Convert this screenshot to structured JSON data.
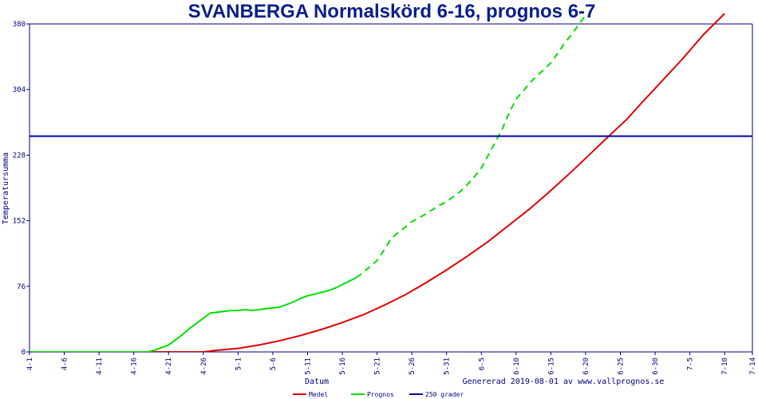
{
  "chart_data": {
    "type": "line",
    "title": "SVANBERGA Normalskörd 6-16, prognos 6-7",
    "xlabel": "Datum",
    "ylabel": "Temperatursumma",
    "ylim": [
      0,
      380
    ],
    "yticks": [
      "0",
      "76",
      "152",
      "228",
      "304",
      "380"
    ],
    "xticks": [
      "4-1",
      "4-6",
      "4-11",
      "4-16",
      "4-21",
      "4-26",
      "5-1",
      "5-6",
      "5-11",
      "5-16",
      "5-21",
      "5-26",
      "5-31",
      "6-5",
      "6-10",
      "6-15",
      "6-20",
      "6-25",
      "6-30",
      "7-5",
      "7-10",
      "7-14"
    ],
    "x_day_offsets": [
      0,
      5,
      10,
      15,
      20,
      25,
      30,
      35,
      40,
      45,
      50,
      55,
      60,
      65,
      70,
      75,
      80,
      85,
      90,
      95,
      100,
      104
    ],
    "x_day_range": [
      0,
      104
    ],
    "footer": "Genererad 2019-08-01 av www.vallprognos.se",
    "grid": false,
    "legend_position": "bottom",
    "series": [
      {
        "name": "Medel",
        "color": "#e00000",
        "style": "solid",
        "points": [
          [
            0,
            0
          ],
          [
            17,
            0
          ],
          [
            20,
            0
          ],
          [
            23,
            0
          ],
          [
            25,
            0
          ],
          [
            27,
            2
          ],
          [
            30,
            4
          ],
          [
            33,
            8
          ],
          [
            36,
            13
          ],
          [
            39,
            19
          ],
          [
            42,
            26
          ],
          [
            45,
            34
          ],
          [
            48,
            43
          ],
          [
            51,
            54
          ],
          [
            54,
            66
          ],
          [
            57,
            80
          ],
          [
            60,
            95
          ],
          [
            63,
            111
          ],
          [
            66,
            128
          ],
          [
            69,
            147
          ],
          [
            72,
            166
          ],
          [
            75,
            187
          ],
          [
            78,
            209
          ],
          [
            81,
            232
          ],
          [
            84,
            255
          ],
          [
            86,
            270
          ],
          [
            88,
            288
          ],
          [
            91,
            314
          ],
          [
            94,
            340
          ],
          [
            97,
            368
          ],
          [
            100,
            392
          ]
        ]
      },
      {
        "name": "Prognos",
        "color": "#00e000",
        "style": "solid+dashed",
        "dash_from_day": 47,
        "points": [
          [
            0,
            0
          ],
          [
            15,
            0
          ],
          [
            17,
            0
          ],
          [
            18,
            2
          ],
          [
            19,
            5
          ],
          [
            20,
            8
          ],
          [
            21,
            14
          ],
          [
            22,
            20
          ],
          [
            23,
            27
          ],
          [
            24,
            33
          ],
          [
            25,
            39
          ],
          [
            26,
            45
          ],
          [
            27,
            46
          ],
          [
            28,
            47
          ],
          [
            29,
            48
          ],
          [
            30,
            48
          ],
          [
            31,
            49
          ],
          [
            32,
            48
          ],
          [
            33,
            49
          ],
          [
            34,
            50
          ],
          [
            35,
            51
          ],
          [
            36,
            52
          ],
          [
            37,
            55
          ],
          [
            38,
            58
          ],
          [
            39,
            62
          ],
          [
            40,
            65
          ],
          [
            41,
            67
          ],
          [
            42,
            69
          ],
          [
            43,
            71
          ],
          [
            44,
            74
          ],
          [
            45,
            78
          ],
          [
            46,
            82
          ],
          [
            47,
            86
          ],
          [
            48,
            92
          ],
          [
            49,
            99
          ],
          [
            50,
            106
          ],
          [
            51,
            118
          ],
          [
            52,
            131
          ],
          [
            53,
            138
          ],
          [
            54,
            144
          ],
          [
            55,
            151
          ],
          [
            56,
            155
          ],
          [
            57,
            160
          ],
          [
            58,
            165
          ],
          [
            59,
            170
          ],
          [
            60,
            174
          ],
          [
            61,
            180
          ],
          [
            62,
            186
          ],
          [
            63,
            194
          ],
          [
            64,
            203
          ],
          [
            65,
            213
          ],
          [
            66,
            228
          ],
          [
            67,
            243
          ],
          [
            68,
            258
          ],
          [
            69,
            277
          ],
          [
            70,
            293
          ],
          [
            71,
            302
          ],
          [
            72,
            312
          ],
          [
            73,
            320
          ],
          [
            74,
            327
          ],
          [
            75,
            335
          ],
          [
            76,
            346
          ],
          [
            77,
            358
          ],
          [
            78,
            368
          ],
          [
            79,
            379
          ],
          [
            80,
            390
          ]
        ]
      },
      {
        "name": "250 grader",
        "color": "#0000a0",
        "style": "solid",
        "points": [
          [
            0,
            250
          ],
          [
            104,
            250
          ]
        ]
      }
    ]
  }
}
